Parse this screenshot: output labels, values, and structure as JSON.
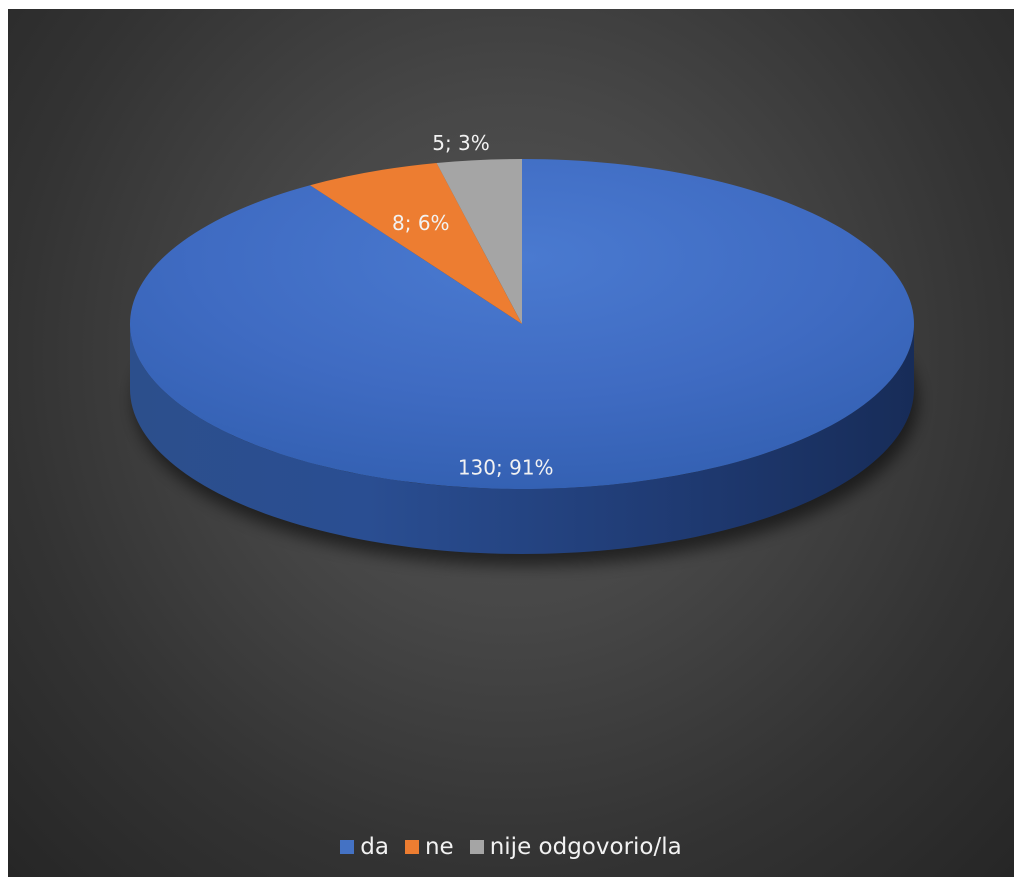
{
  "chart_data": {
    "type": "pie",
    "style": "3d",
    "legend_position": "bottom",
    "categories": [
      "da",
      "ne",
      "nije odgovorio/la"
    ],
    "values": [
      130,
      8,
      5
    ],
    "percentages": [
      91,
      6,
      3
    ],
    "colors": [
      "#4472c4",
      "#ed7d31",
      "#a5a5a5"
    ],
    "data_labels": [
      "130; 91%",
      "8; 6%",
      "5; 3%"
    ],
    "title": ""
  },
  "colors": {
    "background_center": "#555555",
    "background_edge": "#262626",
    "text": "#f2f2f2"
  }
}
